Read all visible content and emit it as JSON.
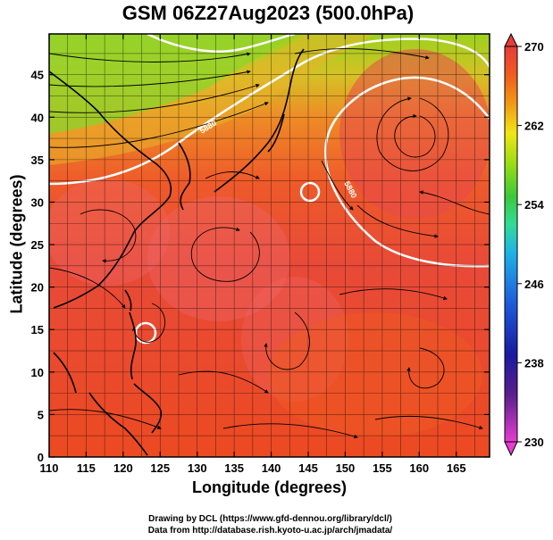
{
  "title": "GSM 06Z27Aug2023 (500.0hPa)",
  "x_axis": {
    "label": "Longitude (degrees)",
    "ticks": [
      "110",
      "115",
      "120",
      "125",
      "130",
      "135",
      "140",
      "145",
      "150",
      "155",
      "160",
      "165"
    ]
  },
  "y_axis": {
    "label": "Latitude  (degrees)",
    "ticks": [
      "0",
      "5",
      "10",
      "15",
      "20",
      "25",
      "30",
      "35",
      "40",
      "45"
    ]
  },
  "colorbar": {
    "ticks": [
      "230",
      "238",
      "246",
      "254",
      "262",
      "270"
    ],
    "colors": [
      "#e63cd2",
      "#1a1aa0",
      "#1e5adc",
      "#1eb4e6",
      "#32dc96",
      "#3cc83c",
      "#96dc14",
      "#f0e614",
      "#f09614",
      "#f05a1e",
      "#e63c3c"
    ]
  },
  "contour_labels": [
    "5880",
    "5880"
  ],
  "credit_lines": [
    "Drawing by DCL (https://www.gfd-dennou.org/library/dcl/)",
    "Data from http://database.rish.kyoto-u.ac.jp/arch/jmadata/"
  ],
  "field_colors": {
    "green": "#8cd21e",
    "yellow": "#d2c828",
    "orange": "#eb7828",
    "red_orange": "#ee5028",
    "red": "#e64146",
    "pink": "#ee6464"
  }
}
